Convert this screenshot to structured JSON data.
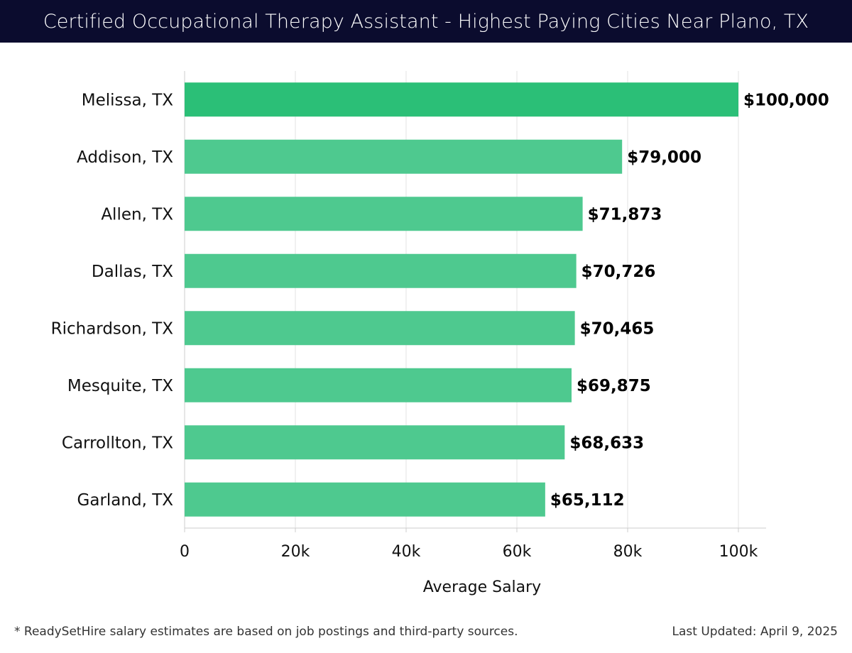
{
  "title": "Certified Occupational Therapy Assistant - Highest Paying Cities Near Plano, TX",
  "footnote": "* ReadySetHire salary estimates are based on job postings and third-party sources.",
  "last_updated": "Last Updated: April 9, 2025",
  "colors": {
    "header_bg": "#0b0c2e",
    "bar_top": "#2bbf77",
    "bar": "#4ec98f",
    "grid": "#e3e3e3",
    "axis": "#cccccc"
  },
  "chart_data": {
    "type": "bar",
    "orientation": "horizontal",
    "categories": [
      "Melissa, TX",
      "Addison, TX",
      "Allen, TX",
      "Dallas, TX",
      "Richardson, TX",
      "Mesquite, TX",
      "Carrollton, TX",
      "Garland, TX"
    ],
    "values": [
      100000,
      79000,
      71873,
      70726,
      70465,
      69875,
      68633,
      65112
    ],
    "value_labels": [
      "$100,000",
      "$79,000",
      "$71,873",
      "$70,726",
      "$70,465",
      "$69,875",
      "$68,633",
      "$65,112"
    ],
    "xlabel": "Average Salary",
    "ylabel": "",
    "xlim": [
      0,
      105000
    ],
    "xticks": [
      0,
      20000,
      40000,
      60000,
      80000,
      100000
    ],
    "xtick_labels": [
      "0",
      "20k",
      "40k",
      "60k",
      "80k",
      "100k"
    ],
    "grid": true
  }
}
